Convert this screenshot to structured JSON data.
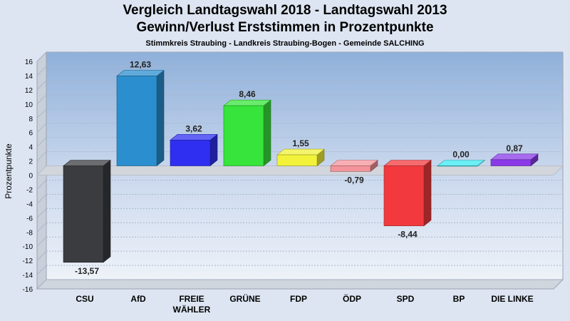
{
  "chart_data": {
    "type": "bar",
    "title": "Vergleich Landtagswahl 2018 - Landtagswahl 2013",
    "subtitle": "Gewinn/Verlust Erststimmen in Prozentpunkte",
    "caption": "Stimmkreis Straubing - Landkreis Straubing-Bogen - Gemeinde SALCHING",
    "ylabel": "Prozentpunkte",
    "xlabel": "",
    "ylim": [
      -16,
      16
    ],
    "yticks": [
      "16",
      "14",
      "12",
      "10",
      "8",
      "6",
      "4",
      "2",
      "0",
      "-2",
      "-4",
      "-6",
      "-8",
      "-10",
      "-12",
      "-14",
      "-16"
    ],
    "grid": true,
    "categories": [
      "CSU",
      "AfD",
      "FREIE WÄHLER",
      "GRÜNE",
      "FDP",
      "ÖDP",
      "SPD",
      "BP",
      "DIE LINKE"
    ],
    "category_lines": [
      [
        "CSU"
      ],
      [
        "AfD"
      ],
      [
        "FREIE",
        "WÄHLER"
      ],
      [
        "GRÜNE"
      ],
      [
        "FDP"
      ],
      [
        "ÖDP"
      ],
      [
        "SPD"
      ],
      [
        "BP"
      ],
      [
        "DIE LINKE"
      ]
    ],
    "values": [
      -13.57,
      12.63,
      3.62,
      8.46,
      1.55,
      -0.79,
      -8.44,
      0.0,
      0.87
    ],
    "value_labels": [
      "-13,57",
      "12,63",
      "3,62",
      "8,46",
      "1,55",
      "-0,79",
      "-8,44",
      "0,00",
      "0,87"
    ],
    "colors": [
      "#3a3c40",
      "#2b8fcf",
      "#2f2ff2",
      "#37e43b",
      "#f2f23a",
      "#f4949a",
      "#f23a3e",
      "#3ae8f2",
      "#8a3ae8"
    ]
  }
}
